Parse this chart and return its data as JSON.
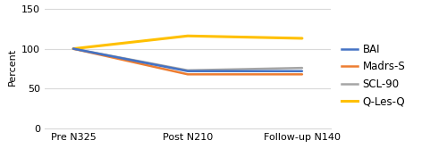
{
  "x_labels": [
    "Pre N325",
    "Post N210",
    "Follow-up N140"
  ],
  "x_positions": [
    0,
    1,
    2
  ],
  "series": [
    {
      "name": "BAI",
      "values": [
        100,
        72,
        72
      ],
      "color": "#4472C4",
      "linewidth": 1.8,
      "zorder": 4
    },
    {
      "name": "Madrs-S",
      "values": [
        100,
        68,
        68
      ],
      "color": "#ED7D31",
      "linewidth": 1.8,
      "zorder": 3
    },
    {
      "name": "SCL-90",
      "values": [
        100,
        73,
        76
      ],
      "color": "#A5A5A5",
      "linewidth": 1.8,
      "zorder": 2
    },
    {
      "name": "Q-Les-Q",
      "values": [
        100,
        116,
        113
      ],
      "color": "#FFC000",
      "linewidth": 2.2,
      "zorder": 1
    }
  ],
  "ylabel": "Percent",
  "ylim": [
    0,
    155
  ],
  "yticks": [
    0,
    50,
    100,
    150
  ],
  "background_color": "#ffffff",
  "grid_color": "#d9d9d9",
  "axis_fontsize": 8,
  "tick_fontsize": 8,
  "legend_fontsize": 8.5
}
